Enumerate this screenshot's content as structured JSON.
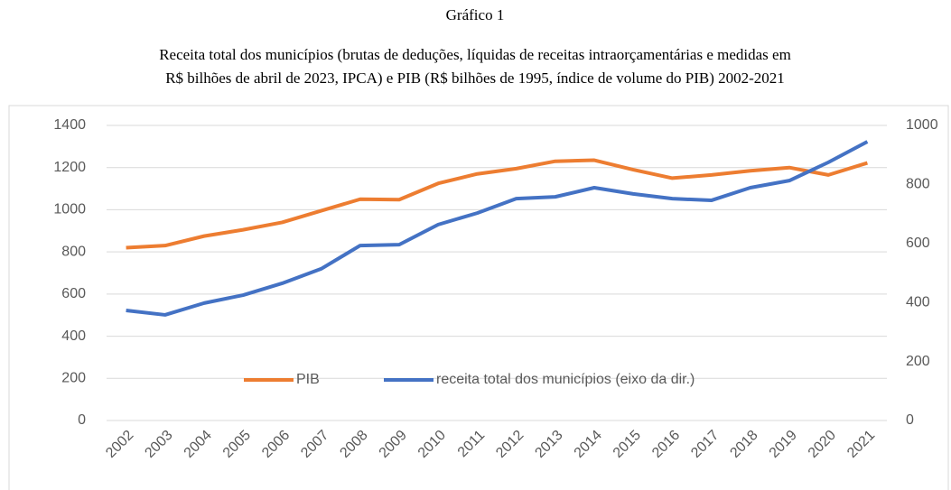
{
  "chart_data": {
    "type": "line",
    "title": "Gráfico 1",
    "subtitle": [
      "Receita total dos municípios (brutas de deduções, líquidas de receitas intraorçamentárias e medidas em",
      "R$ bilhões de abril de 2023, IPCA) e PIB (R$ bilhões de 1995, índice de volume do PIB) 2002-2021"
    ],
    "categories": [
      "2002",
      "2003",
      "2004",
      "2005",
      "2006",
      "2007",
      "2008",
      "2009",
      "2010",
      "2011",
      "2012",
      "2013",
      "2014",
      "2015",
      "2016",
      "2017",
      "2018",
      "2019",
      "2020",
      "2021"
    ],
    "series": [
      {
        "name": "PIB",
        "color": "#ed7d31",
        "values": [
          820,
          830,
          875,
          905,
          940,
          995,
          1050,
          1048,
          1125,
          1170,
          1195,
          1230,
          1235,
          1190,
          1150,
          1165,
          1185,
          1200,
          1165,
          1222
        ]
      },
      {
        "name": "receita total dos municípios (eixo da dir.)",
        "color": "#4472c4",
        "axis": "y2",
        "values": [
          373,
          358,
          398,
          425,
          465,
          514,
          593,
          596,
          664,
          703,
          752,
          758,
          789,
          768,
          752,
          746,
          789,
          813,
          875,
          945
        ]
      }
    ],
    "ylim": [
      0,
      1400
    ],
    "yticks": [
      0,
      200,
      400,
      600,
      800,
      1000,
      1200,
      1400
    ],
    "y2lim": [
      0,
      1000
    ],
    "y2ticks": [
      0,
      200,
      400,
      600,
      800,
      1000
    ],
    "grid": true,
    "legend": "lower center"
  }
}
